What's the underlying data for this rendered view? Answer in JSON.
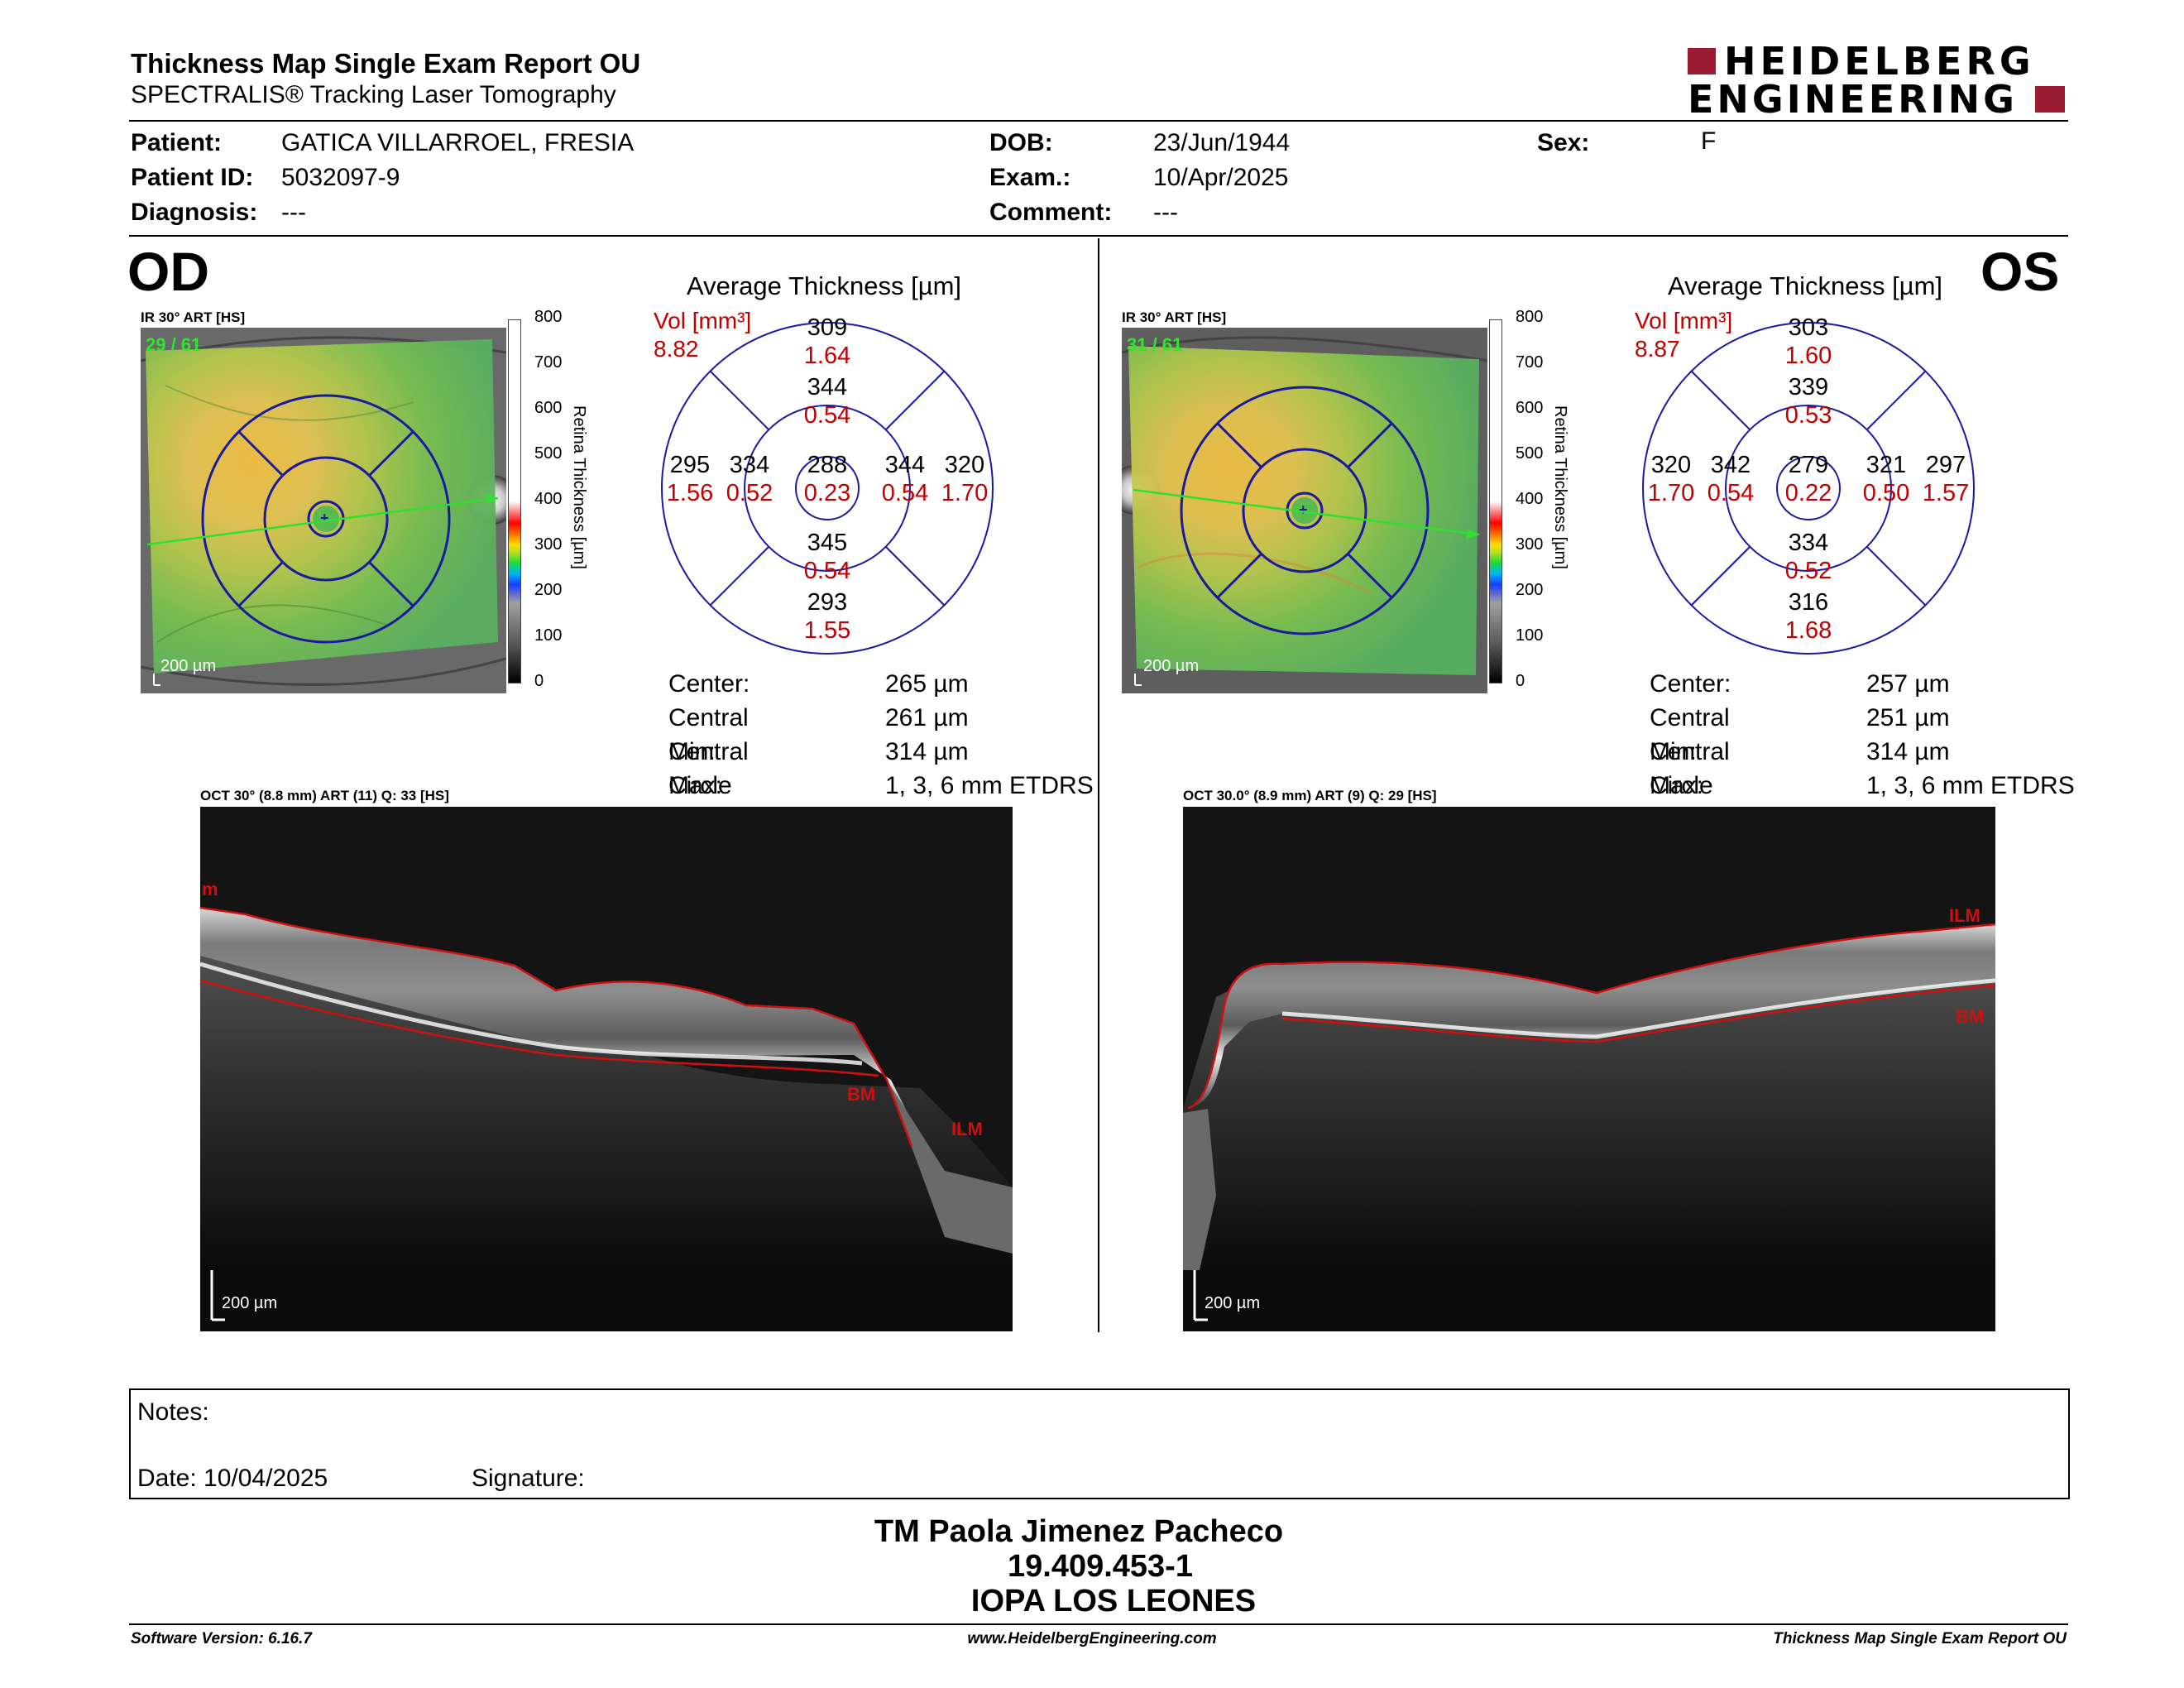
{
  "header": {
    "title": "Thickness Map Single Exam Report OU",
    "subtitle": "SPECTRALIS® Tracking Laser Tomography",
    "logo_line1": "HEIDELBERG",
    "logo_line2": "ENGINEERING",
    "brand_color": "#9b1b30"
  },
  "patient": {
    "patient_label": "Patient:",
    "patient_value": "GATICA VILLARROEL, FRESIA",
    "id_label": "Patient ID:",
    "id_value": "5032097-9",
    "diagnosis_label": "Diagnosis:",
    "diagnosis_value": "---",
    "dob_label": "DOB:",
    "dob_value": "23/Jun/1944",
    "exam_label": "Exam.:",
    "exam_value": "10/Apr/2025",
    "comment_label": "Comment:",
    "comment_value": "---",
    "sex_label": "Sex:",
    "sex_value": "F"
  },
  "od": {
    "eye": "OD",
    "ir_label": "IR 30° ART [HS]",
    "ir_counter": "29 / 61",
    "ir_scale": "200 µm",
    "avg_title": "Average Thickness [µm]",
    "vol_label": "Vol [mm³]",
    "vol_value": "8.82",
    "grid": {
      "center_t": "288",
      "center_v": "0.23",
      "inner_sup_t": "344",
      "inner_sup_v": "0.54",
      "inner_inf_t": "345",
      "inner_inf_v": "0.54",
      "inner_left_t": "334",
      "inner_left_v": "0.52",
      "inner_right_t": "344",
      "inner_right_v": "0.54",
      "outer_sup_t": "309",
      "outer_sup_v": "1.64",
      "outer_inf_t": "293",
      "outer_inf_v": "1.55",
      "outer_left_t": "295",
      "outer_left_v": "1.56",
      "outer_right_t": "320",
      "outer_right_v": "1.70"
    },
    "stats": {
      "center_label": "Center:",
      "center_value": "265 µm",
      "cmin_label": "Central Min:",
      "cmin_value": "261 µm",
      "cmax_label": "Central Max:",
      "cmax_value": "314 µm",
      "diam_label": "Circle Diameters:",
      "diam_value": "1, 3, 6 mm ETDRS"
    },
    "oct_label": "OCT 30° (8.8 mm) ART (11) Q: 33 [HS]",
    "oct_scale": "200 µm",
    "ilm_label": "ILM",
    "bm_label": "BM",
    "ilm_cut_label": "m"
  },
  "os": {
    "eye": "OS",
    "ir_label": "IR 30° ART [HS]",
    "ir_counter": "31 / 61",
    "ir_scale": "200 µm",
    "avg_title": "Average Thickness [µm]",
    "vol_label": "Vol [mm³]",
    "vol_value": "8.87",
    "grid": {
      "center_t": "279",
      "center_v": "0.22",
      "inner_sup_t": "339",
      "inner_sup_v": "0.53",
      "inner_inf_t": "334",
      "inner_inf_v": "0.52",
      "inner_left_t": "342",
      "inner_left_v": "0.54",
      "inner_right_t": "321",
      "inner_right_v": "0.50",
      "outer_sup_t": "303",
      "outer_sup_v": "1.60",
      "outer_inf_t": "316",
      "outer_inf_v": "1.68",
      "outer_left_t": "320",
      "outer_left_v": "1.70",
      "outer_right_t": "297",
      "outer_right_v": "1.57"
    },
    "stats": {
      "center_label": "Center:",
      "center_value": "257 µm",
      "cmin_label": "Central Min:",
      "cmin_value": "251 µm",
      "cmax_label": "Central Max:",
      "cmax_value": "314 µm",
      "diam_label": "Circle Diameters:",
      "diam_value": "1, 3, 6 mm ETDRS"
    },
    "oct_label": "OCT 30.0° (8.9 mm) ART (9) Q: 29 [HS]",
    "oct_scale": "200 µm",
    "ilm_label": "ILM",
    "bm_label": "BM"
  },
  "colorbar": {
    "title": "Retina  Thickness [µm]",
    "ticks": [
      "800",
      "700",
      "600",
      "500",
      "400",
      "300",
      "200",
      "100",
      "0"
    ]
  },
  "notes": {
    "notes_label": "Notes:",
    "date_label": "Date: 10/04/2025",
    "signature_label": "Signature:"
  },
  "signature": {
    "name": "TM Paola Jimenez Pacheco",
    "rut": "19.409.453-1",
    "institution": "IOPA LOS LEONES"
  },
  "footer": {
    "software": "Software Version: 6.16.7",
    "website": "www.HeidelbergEngineering.com",
    "report": "Thickness Map Single Exam Report OU"
  },
  "colors": {
    "thickness_text": "#000000",
    "volume_text": "#c00000",
    "grid_lines": "#1a1aa0",
    "segmentation": "#d01010"
  }
}
